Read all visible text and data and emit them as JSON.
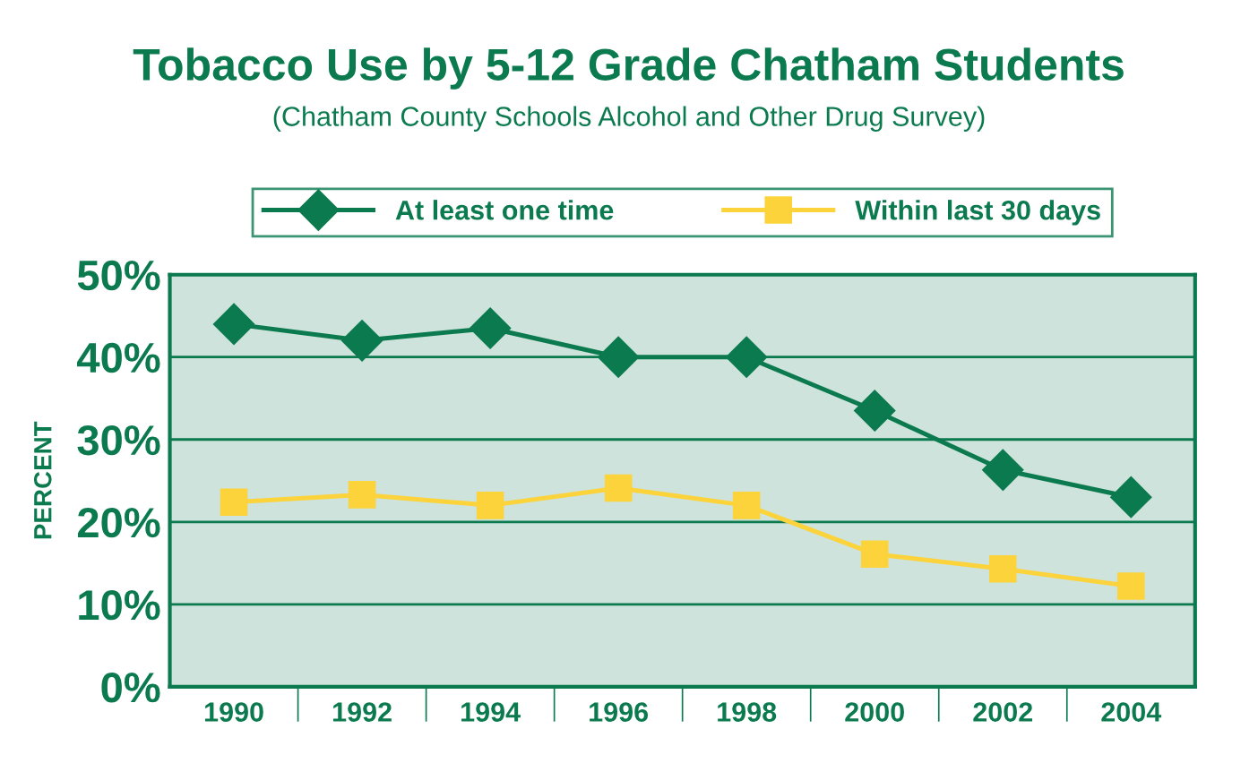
{
  "chart_data": {
    "type": "line",
    "title": "Tobacco Use by 5-12 Grade Chatham Students",
    "subtitle": "(Chatham County Schools Alcohol and Other Drug Survey)",
    "ylabel": "PERCENT",
    "categories": [
      "1990",
      "1992",
      "1994",
      "1996",
      "1998",
      "2000",
      "2002",
      "2004"
    ],
    "series": [
      {
        "name": "At least one time",
        "color": "#0b7a4f",
        "marker": "diamond",
        "values": [
          44,
          42,
          43.5,
          40,
          40,
          33.5,
          26.3,
          23
        ]
      },
      {
        "name": "Within last 30 days",
        "color": "#fcd33a",
        "marker": "square",
        "values": [
          22.4,
          23.3,
          22,
          24.1,
          22,
          16.1,
          14.3,
          12.2
        ]
      }
    ],
    "ylim": [
      0,
      50
    ],
    "yticks": [
      {
        "value": 0,
        "label": "0%"
      },
      {
        "value": 10,
        "label": "10%"
      },
      {
        "value": 20,
        "label": "20%"
      },
      {
        "value": 30,
        "label": "30%"
      },
      {
        "value": 40,
        "label": "40%"
      },
      {
        "value": 50,
        "label": "50%"
      }
    ],
    "grid": "y",
    "legend": "top",
    "line_style": "solid"
  }
}
